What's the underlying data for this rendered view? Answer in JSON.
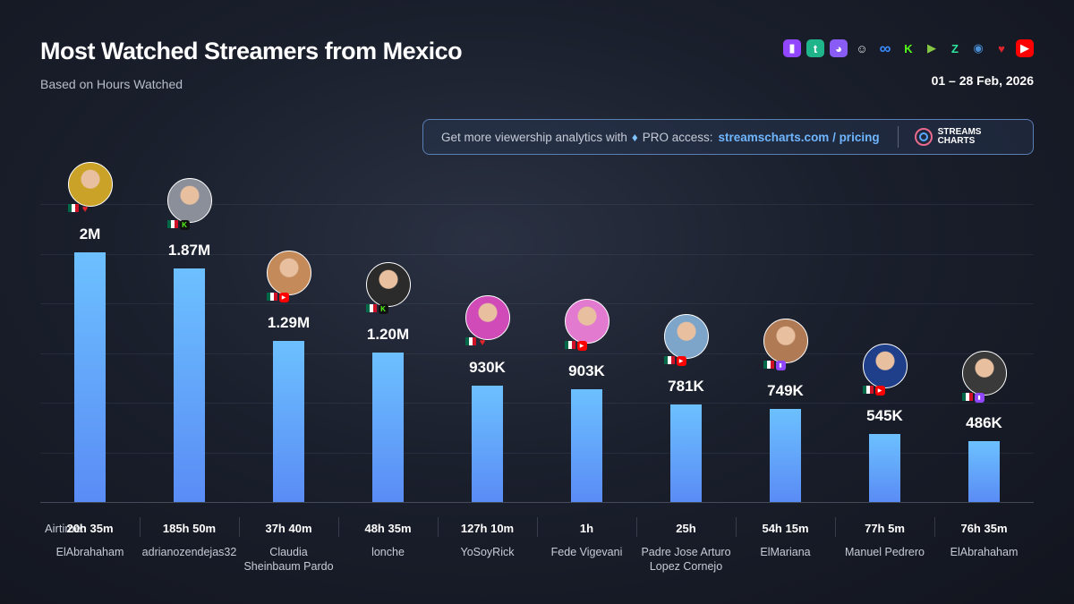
{
  "header": {
    "title": "Most Watched Streamers from Mexico",
    "subtitle": "Based on Hours Watched",
    "date_range": "01 – 28 Feb, 2026"
  },
  "platform_icons": [
    {
      "name": "twitch-icon",
      "color": "#9146ff"
    },
    {
      "name": "trovo-icon",
      "color": "#1fb48a"
    },
    {
      "name": "kick-alt-icon",
      "color": "#8a5cf6"
    },
    {
      "name": "ghost-icon",
      "color": "#e6e6e6"
    },
    {
      "name": "infinity-icon",
      "color": "#3b8cff"
    },
    {
      "name": "kick-icon",
      "color": "#53fc18"
    },
    {
      "name": "rumble-icon",
      "color": "#85c742"
    },
    {
      "name": "zeta-icon",
      "color": "#2ee59d"
    },
    {
      "name": "steam-icon",
      "color": "#4a8fd6"
    },
    {
      "name": "heart-icon",
      "color": "#e0242c"
    },
    {
      "name": "youtube-icon",
      "color": "#ff0000"
    }
  ],
  "promo": {
    "text": "Get more viewership analytics with",
    "gem_icon": "diamond-icon",
    "pro_text": "PRO access:",
    "link": "streamscharts.com / pricing",
    "logo_line1": "STREAMS",
    "logo_line2": "CHARTS"
  },
  "airtime_label": "Airtime:",
  "colors": {
    "bar_top": "#6cc0ff",
    "bar_bottom": "#5a8cf5",
    "twitch": "#9146ff",
    "kick": "#53fc18",
    "youtube": "#ff0000",
    "heart": "#e0242c"
  },
  "chart_data": {
    "type": "bar",
    "title": "Most Watched Streamers from Mexico",
    "subtitle": "Based on Hours Watched",
    "ylabel": "",
    "ylim": [
      0,
      2000000
    ],
    "categories": [
      "ElAbrahaham",
      "adrianozendejas32",
      "Claudia Sheinbaum Pardo",
      "lonche",
      "YoSoyRick",
      "Fede Vigevani",
      "Padre Jose Arturo Lopez Cornejo",
      "ElMariana",
      "Manuel Pedrero",
      "ElAbrahaham"
    ],
    "values": [
      2000000,
      1870000,
      1290000,
      1200000,
      930000,
      903000,
      781000,
      749000,
      545000,
      486000
    ],
    "value_labels": [
      "2M",
      "1.87M",
      "1.29M",
      "1.20M",
      "930K",
      "903K",
      "781K",
      "749K",
      "545K",
      "486K"
    ],
    "airtime": [
      "20h 35m",
      "185h 50m",
      "37h 40m",
      "48h 35m",
      "127h 10m",
      "1h",
      "25h",
      "54h 15m",
      "77h 5m",
      "76h 35m"
    ],
    "name_lines": [
      [
        "ElAbrahaham"
      ],
      [
        "adrianozendejas32"
      ],
      [
        "Claudia",
        "Sheinbaum Pardo"
      ],
      [
        "lonche"
      ],
      [
        "YoSoyRick"
      ],
      [
        "Fede Vigevani"
      ],
      [
        "Padre Jose Arturo",
        "Lopez Cornejo"
      ],
      [
        "ElMariana"
      ],
      [
        "Manuel Pedrero"
      ],
      [
        "ElAbrahaham"
      ]
    ],
    "platform": [
      "heart",
      "kick",
      "youtube",
      "kick",
      "heart",
      "youtube",
      "youtube",
      "twitch",
      "youtube",
      "twitch"
    ],
    "avatar_colors": [
      "#c9a227",
      "#8a8f99",
      "#c48a5a",
      "#2b2b2b",
      "#d04ab8",
      "#e27bd0",
      "#7da4c9",
      "#b07a55",
      "#1f3f8a",
      "#3a3a3a"
    ],
    "country_flag": "mexico-flag-icon"
  }
}
